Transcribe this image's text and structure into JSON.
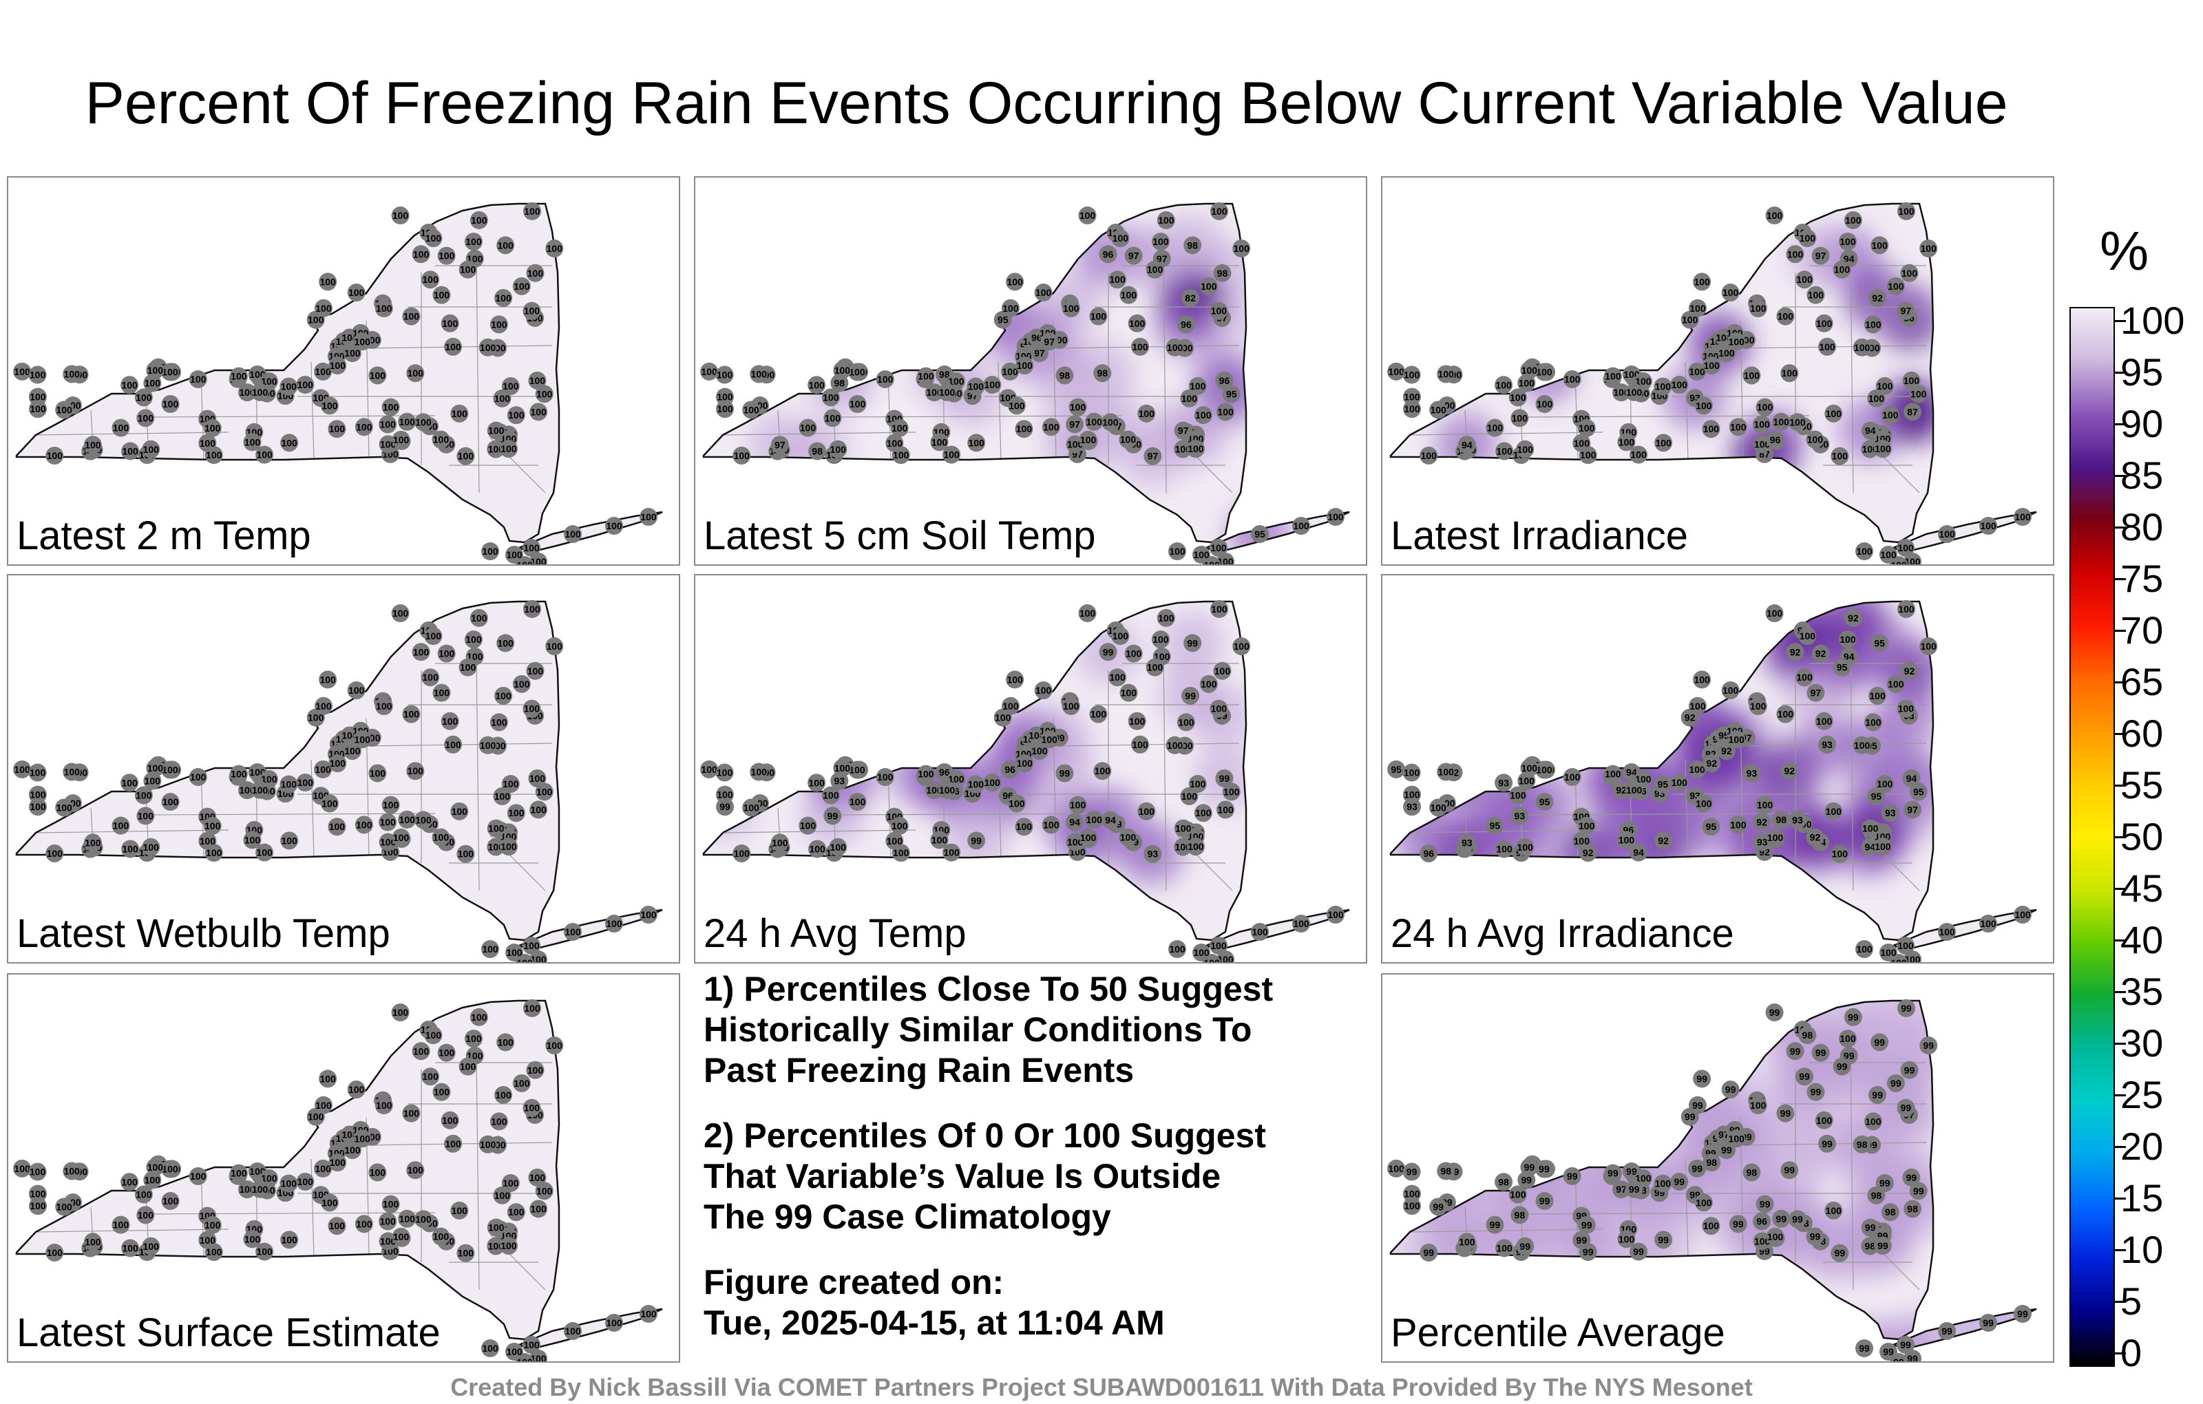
{
  "title": "Percent Of Freezing Rain Events Occurring Below Current Variable Value",
  "panels": [
    {
      "label": "Latest 2 m Temp",
      "values": [
        100,
        100,
        100,
        100,
        100,
        100,
        100,
        100,
        100,
        100,
        100,
        100,
        100,
        100,
        100,
        100,
        100,
        100,
        100,
        100,
        100,
        100,
        100,
        100,
        100,
        100,
        100,
        100,
        100,
        100,
        100,
        100,
        100,
        100,
        100,
        100,
        100,
        100,
        100,
        100,
        100,
        100,
        100,
        100,
        100,
        100,
        100,
        100,
        100,
        100,
        100,
        100,
        100,
        100,
        100,
        100,
        100,
        100,
        100,
        100,
        100,
        100,
        100,
        100,
        100,
        100,
        100,
        100,
        100,
        100,
        100,
        100,
        100,
        100,
        100,
        100,
        100,
        100,
        100,
        100,
        100,
        100,
        100,
        100,
        100,
        100,
        100,
        100,
        100,
        100,
        100,
        100,
        100,
        100,
        100,
        100,
        100,
        100,
        100,
        100,
        100,
        100,
        100,
        100,
        100,
        100,
        100,
        100,
        100,
        100,
        100,
        100,
        100,
        100,
        100,
        100,
        100,
        100,
        100,
        100,
        100,
        100,
        100,
        100,
        100,
        100
      ]
    },
    {
      "label": "Latest 5 cm Soil Temp",
      "values": [
        97,
        100,
        97,
        100,
        98,
        100,
        98,
        95,
        100,
        97,
        97,
        97,
        98,
        96,
        100,
        97,
        100,
        100,
        82,
        100,
        97,
        100,
        97,
        100,
        100,
        100,
        98,
        97,
        100,
        100,
        95,
        100,
        100,
        100,
        96,
        100,
        100,
        100,
        100,
        100,
        100,
        100,
        100,
        98,
        100,
        100,
        98,
        100,
        100,
        100,
        100,
        100,
        100,
        97,
        100,
        100,
        97,
        100,
        96,
        96,
        100,
        98,
        100,
        100,
        100,
        100,
        100,
        100,
        100,
        100,
        100,
        100,
        100,
        97,
        100,
        100,
        98,
        100,
        100,
        100,
        100,
        100,
        100,
        100,
        100,
        100,
        100,
        100,
        100,
        100,
        97,
        100,
        100,
        98,
        100,
        100,
        100,
        100,
        97,
        100,
        100,
        100,
        100,
        100,
        100,
        100,
        100,
        100,
        100,
        100,
        100,
        100,
        100,
        100,
        100,
        100,
        100,
        100,
        100,
        100,
        100,
        100,
        95,
        100,
        100,
        100
      ]
    },
    {
      "label": "Latest Irradiance",
      "values": [
        100,
        100,
        100,
        100,
        100,
        100,
        100,
        100,
        92,
        100,
        100,
        86,
        100,
        100,
        100,
        87,
        100,
        100,
        92,
        100,
        94,
        96,
        97,
        100,
        100,
        100,
        100,
        100,
        100,
        100,
        100,
        100,
        100,
        100,
        100,
        100,
        100,
        100,
        100,
        100,
        100,
        100,
        100,
        100,
        100,
        100,
        100,
        100,
        100,
        100,
        100,
        100,
        100,
        94,
        87,
        93,
        100,
        100,
        100,
        100,
        100,
        100,
        100,
        100,
        100,
        100,
        100,
        100,
        100,
        100,
        100,
        100,
        100,
        100,
        100,
        100,
        100,
        100,
        100,
        100,
        100,
        100,
        100,
        100,
        100,
        100,
        100,
        100,
        100,
        100,
        100,
        100,
        100,
        100,
        100,
        100,
        96,
        97,
        94,
        100,
        100,
        100,
        100,
        100,
        100,
        100,
        100,
        100,
        100,
        100,
        100,
        100,
        100,
        100,
        100,
        100,
        100,
        100,
        100,
        100,
        100,
        100,
        100,
        100,
        100,
        100
      ]
    },
    {
      "label": "Latest Wetbulb Temp",
      "values": [
        100,
        100,
        100,
        100,
        100,
        100,
        100,
        100,
        100,
        100,
        100,
        100,
        100,
        100,
        100,
        100,
        100,
        100,
        100,
        100,
        100,
        100,
        100,
        100,
        100,
        100,
        100,
        100,
        100,
        100,
        100,
        100,
        100,
        100,
        100,
        100,
        100,
        100,
        100,
        100,
        100,
        100,
        100,
        100,
        100,
        100,
        100,
        100,
        100,
        100,
        100,
        100,
        100,
        100,
        100,
        100,
        100,
        100,
        100,
        100,
        100,
        100,
        100,
        100,
        100,
        100,
        100,
        100,
        100,
        100,
        100,
        100,
        100,
        100,
        100,
        100,
        100,
        100,
        100,
        100,
        100,
        100,
        100,
        100,
        100,
        100,
        100,
        100,
        100,
        100,
        100,
        100,
        100,
        100,
        100,
        100,
        100,
        100,
        100,
        100,
        100,
        100,
        100,
        100,
        100,
        100,
        100,
        100,
        100,
        100,
        100,
        100,
        100,
        100,
        100,
        100,
        100,
        100,
        100,
        100,
        100,
        100,
        100,
        100,
        100,
        100
      ]
    },
    {
      "label": "24 h Avg Temp",
      "values": [
        100,
        100,
        93,
        96,
        100,
        100,
        100,
        100,
        96,
        99,
        94,
        99,
        96,
        99,
        94,
        100,
        100,
        100,
        99,
        94,
        100,
        99,
        100,
        100,
        100,
        99,
        99,
        100,
        100,
        99,
        100,
        99,
        100,
        100,
        99,
        100,
        100,
        100,
        100,
        100,
        94,
        100,
        96,
        99,
        100,
        100,
        100,
        99,
        100,
        100,
        100,
        99,
        100,
        100,
        100,
        96,
        93,
        100,
        100,
        100,
        100,
        93,
        100,
        100,
        100,
        100,
        100,
        100,
        100,
        100,
        100,
        100,
        100,
        100,
        100,
        100,
        100,
        100,
        100,
        100,
        100,
        100,
        100,
        100,
        100,
        100,
        100,
        100,
        100,
        100,
        100,
        100,
        100,
        100,
        100,
        100,
        100,
        100,
        100,
        100,
        100,
        100,
        100,
        100,
        100,
        100,
        100,
        100,
        100,
        100,
        100,
        100,
        100,
        100,
        100,
        100,
        100,
        100,
        100,
        100,
        100,
        100,
        100,
        100,
        100,
        100
      ]
    },
    {
      "label": "24 h Avg Irradiance",
      "values": [
        93,
        93,
        100,
        100,
        92,
        92,
        100,
        92,
        94,
        100,
        92,
        93,
        94,
        92,
        93,
        92,
        92,
        92,
        100,
        93,
        94,
        100,
        92,
        94,
        98,
        93,
        93,
        93,
        95,
        92,
        95,
        97,
        94,
        93,
        94,
        95,
        95,
        94,
        95,
        95,
        95,
        96,
        96,
        95,
        92,
        92,
        92,
        93,
        93,
        94,
        93,
        94,
        95,
        93,
        97,
        93,
        100,
        100,
        95,
        100,
        100,
        100,
        100,
        95,
        95,
        96,
        100,
        93,
        95,
        100,
        92,
        92,
        97,
        92,
        92,
        92,
        100,
        92,
        100,
        100,
        100,
        100,
        100,
        100,
        100,
        100,
        100,
        100,
        100,
        100,
        100,
        100,
        100,
        100,
        100,
        100,
        100,
        100,
        100,
        100,
        100,
        100,
        100,
        100,
        100,
        100,
        100,
        100,
        100,
        100,
        100,
        100,
        100,
        100,
        100,
        100,
        100,
        100,
        100,
        100,
        100,
        100,
        100,
        100,
        100,
        100
      ]
    },
    {
      "label": "Latest Surface Estimate",
      "values": [
        100,
        100,
        100,
        100,
        100,
        100,
        100,
        100,
        100,
        100,
        100,
        100,
        100,
        100,
        100,
        100,
        100,
        100,
        100,
        100,
        100,
        100,
        100,
        100,
        100,
        100,
        100,
        100,
        100,
        100,
        100,
        100,
        100,
        100,
        100,
        100,
        100,
        100,
        100,
        100,
        100,
        100,
        100,
        100,
        100,
        100,
        100,
        100,
        100,
        100,
        100,
        100,
        100,
        100,
        100,
        100,
        100,
        100,
        100,
        100,
        100,
        100,
        100,
        100,
        100,
        100,
        100,
        100,
        100,
        100,
        100,
        100,
        100,
        100,
        100,
        100,
        100,
        100,
        100,
        100,
        100,
        100,
        100,
        100,
        100,
        100,
        100,
        100,
        100,
        100,
        100,
        100,
        100,
        100,
        100,
        100,
        100,
        100,
        100,
        100,
        100,
        100,
        100,
        100,
        100,
        100,
        100,
        100,
        100,
        100,
        100,
        100,
        100,
        100,
        100,
        100,
        100,
        100,
        100,
        100,
        100,
        100,
        100,
        100,
        100,
        100
      ]
    },
    {
      "label": "Percentile Average",
      "values": [
        99,
        99,
        100,
        99,
        99,
        97,
        100,
        99,
        99,
        98,
        96,
        97,
        99,
        99,
        99,
        99,
        99,
        98,
        99,
        98,
        99,
        99,
        99,
        99,
        99,
        100,
        98,
        99,
        99,
        99,
        99,
        99,
        98,
        98,
        99,
        99,
        99,
        99,
        99,
        98,
        99,
        99,
        98,
        99,
        99,
        99,
        99,
        98,
        99,
        99,
        98,
        98,
        99,
        100,
        98,
        99,
        99,
        99,
        97,
        100,
        100,
        99,
        99,
        100,
        100,
        100,
        99,
        100,
        100,
        100,
        100,
        99,
        99,
        99,
        99,
        99,
        100,
        100,
        99,
        99,
        99,
        100,
        98,
        99,
        99,
        98,
        100,
        99,
        99,
        99,
        100,
        100,
        100,
        99,
        98,
        100,
        100,
        99,
        99,
        99,
        100,
        100,
        99,
        99,
        99,
        99,
        99,
        99,
        99,
        99,
        99,
        99,
        99,
        99,
        99,
        99,
        99,
        99,
        99,
        99,
        99,
        99,
        99,
        99,
        99,
        99
      ]
    }
  ],
  "notes": {
    "n1_l1": "1) Percentiles Close To 50 Suggest",
    "n1_l2": "Historically Similar Conditions To",
    "n1_l3": "Past Freezing Rain Events",
    "n2_l1": "2) Percentiles Of 0 Or 100 Suggest",
    "n2_l2": "That Variable’s Value Is Outside",
    "n2_l3": "The 99 Case Climatology",
    "n3_l1": "Figure created on:",
    "n3_l2": "Tue, 2025-04-15, at 11:04 AM"
  },
  "credit": "Created By Nick Bassill Via COMET Partners Project SUBAWD001611 With Data Provided By The NYS Mesonet",
  "colorbar": {
    "unit": "%",
    "ticks": [
      "100",
      "95",
      "90",
      "85",
      "80",
      "75",
      "70",
      "65",
      "60",
      "55",
      "50",
      "45",
      "40",
      "35",
      "30",
      "25",
      "20",
      "15",
      "10",
      "5",
      "0"
    ],
    "colors": [
      "#f3eef5",
      "#cdb8de",
      "#8a55b8",
      "#4d178c",
      "#7a0010",
      "#d00000",
      "#ff1a00",
      "#ff6600",
      "#ff9900",
      "#ffcc00",
      "#ffee00",
      "#cce600",
      "#66cc00",
      "#11aa33",
      "#00b899",
      "#00cccc",
      "#00aaee",
      "#0066ff",
      "#0022dd",
      "#000088",
      "#000000"
    ]
  },
  "colors": {
    "state_fill": "#f1ecf4",
    "station": "#7a7a7a",
    "border": "#8a8a8a"
  }
}
